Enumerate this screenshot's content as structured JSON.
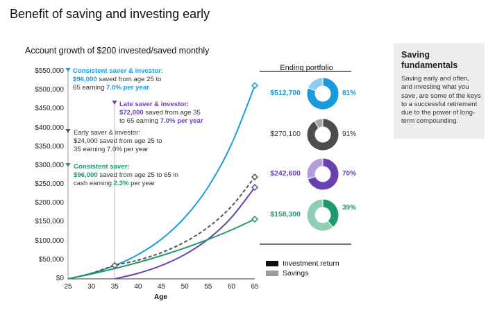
{
  "title": "Benefit of saving and investing early",
  "sidebar": {
    "title": "Saving fundamentals",
    "body": "Saving early and often, and investing what you save, are some of the keys to a successful retirement due to the power of long-term compounding."
  },
  "colors": {
    "consistent_investor": "#1a9be0",
    "late_investor": "#6a3fb0",
    "early_investor": "#555555",
    "consistent_saver": "#1f9a6a",
    "investment_return": "#111111",
    "savings": "#9a9a9a"
  },
  "annotations": {
    "consistent_investor": {
      "head": "Consistent saver & investor:",
      "amount": "$96,000",
      "line1": " saved from age 25 to",
      "line2a": "65 earning ",
      "rate": "7.0% per year"
    },
    "late_investor": {
      "head": "Late saver & investor:",
      "amount": "$72,000",
      "line1": " saved from age 35",
      "line2a": "to 65 earning ",
      "rate": "7.0% per year"
    },
    "early_investor": {
      "head": "Early saver & investor:",
      "line1": "$24,000 saved from age 25 to",
      "line2": "35 earning 7.0% per year"
    },
    "consistent_saver": {
      "head": "Consistent saver:",
      "amount": "$96,000",
      "line1": " saved from age 25 to 65 in",
      "line2a": "cash earning ",
      "rate": "2.3%",
      "line2b": " per year"
    }
  },
  "portfolio": {
    "title": "Ending portfolio",
    "items": [
      {
        "value": "$512,700",
        "pct": "81%",
        "return_share": 0.81,
        "color": "#1a9be0",
        "light": "#8cccf0"
      },
      {
        "value": "$270,100",
        "pct": "91%",
        "return_share": 0.91,
        "color": "#4d4d4d",
        "light": "#a6a6a6"
      },
      {
        "value": "$242,600",
        "pct": "70%",
        "return_share": 0.7,
        "color": "#6a3fb0",
        "light": "#b59fd8"
      },
      {
        "value": "$158,300",
        "pct": "39%",
        "return_share": 0.39,
        "color": "#1f9a6a",
        "light": "#8fceb4"
      }
    ]
  },
  "legend": {
    "investment_return": "Investment return",
    "savings": "Savings"
  },
  "chart_data": {
    "type": "line",
    "title": "Account growth of $200 invested/saved monthly",
    "xlabel": "Age",
    "ylabel": "",
    "xlim": [
      25,
      65
    ],
    "ylim": [
      0,
      550000
    ],
    "x_ticks": [
      "25",
      "30",
      "35",
      "40",
      "45",
      "50",
      "55",
      "60",
      "65"
    ],
    "y_ticks": [
      "$0",
      "$50,000",
      "$100,000",
      "$150,000",
      "$200,000",
      "$250,000",
      "$300,000",
      "$350,000",
      "$400,000",
      "$450,000",
      "$500,000",
      "$550,000"
    ],
    "series": [
      {
        "key": "consistent_investor",
        "color": "#1a9be0",
        "dashed": false,
        "x": [
          25,
          30,
          35,
          40,
          45,
          50,
          55,
          60,
          65
        ],
        "y": [
          0,
          14700,
          35400,
          64400,
          105200,
          162700,
          243300,
          356700,
          512700
        ]
      },
      {
        "key": "late_investor",
        "color": "#6a3fb0",
        "dashed": false,
        "x": [
          35,
          40,
          45,
          50,
          55,
          60,
          65
        ],
        "y": [
          0,
          14700,
          35400,
          64400,
          105200,
          162700,
          242600
        ]
      },
      {
        "key": "early_investor",
        "color": "#555555",
        "dashed": true,
        "x": [
          25,
          30,
          35,
          40,
          45,
          50,
          55,
          60,
          65
        ],
        "y": [
          0,
          14700,
          35400,
          49600,
          69600,
          97600,
          136900,
          192000,
          270100
        ]
      },
      {
        "key": "consistent_saver",
        "color": "#1f9a6a",
        "dashed": false,
        "x": [
          25,
          30,
          35,
          40,
          45,
          50,
          55,
          60,
          65
        ],
        "y": [
          0,
          12900,
          27400,
          43500,
          61600,
          81800,
          104400,
          129700,
          158300
        ]
      }
    ]
  }
}
